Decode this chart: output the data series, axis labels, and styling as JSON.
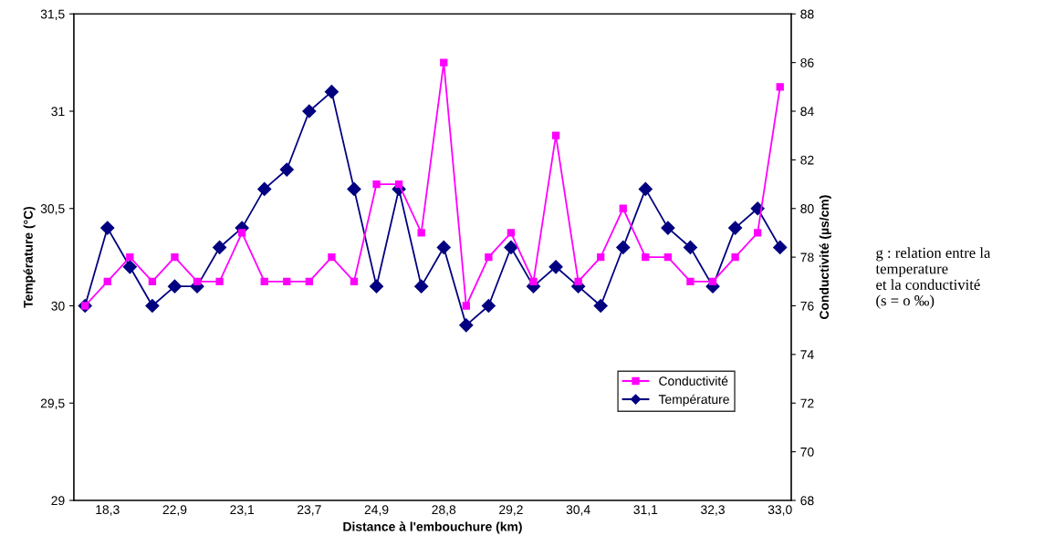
{
  "chart_data": {
    "type": "line",
    "xlabel": "Distance à l'embouchure (km)",
    "ylabel": "Température (°C)",
    "y2label": "Conductivité (µs/cm)",
    "categories": [
      null,
      "18,3",
      null,
      null,
      "22,9",
      null,
      null,
      "23,1",
      null,
      null,
      "23,7",
      null,
      null,
      "24,9",
      null,
      null,
      "28,8",
      null,
      null,
      "29,2",
      null,
      null,
      "30,4",
      null,
      null,
      "31,1",
      null,
      null,
      "32,3",
      null,
      null,
      "33,0"
    ],
    "series": [
      {
        "name": "Conductivité",
        "color": "#ff00ff",
        "axis": "y2",
        "marker": "square",
        "values": [
          76,
          77,
          78,
          77,
          78,
          77,
          77,
          79,
          77,
          77,
          77,
          78,
          77,
          81,
          81,
          79,
          86,
          76,
          78,
          79,
          77,
          83,
          77,
          78,
          80,
          78,
          78,
          77,
          77,
          78,
          79,
          85
        ]
      },
      {
        "name": "Température",
        "color": "#000080",
        "axis": "y",
        "marker": "diamond",
        "values": [
          30.0,
          30.4,
          30.2,
          30.0,
          30.1,
          30.1,
          30.3,
          30.4,
          30.6,
          30.7,
          31.0,
          31.1,
          30.6,
          30.1,
          30.6,
          30.1,
          30.3,
          29.9,
          30.0,
          30.3,
          30.1,
          30.2,
          30.1,
          30.0,
          30.3,
          30.6,
          30.4,
          30.3,
          30.1,
          30.4,
          30.5,
          30.3
        ]
      }
    ],
    "ylim": [
      29,
      31.5
    ],
    "yticks": [
      29,
      {
        "value": 29.5,
        "label": "29,5"
      },
      30,
      {
        "value": 30.5,
        "label": "30,5"
      },
      31,
      {
        "value": 31.5,
        "label": "31,5"
      }
    ],
    "y2lim": [
      68,
      88
    ],
    "y2ticks": [
      68,
      70,
      72,
      74,
      76,
      78,
      80,
      82,
      84,
      86,
      88
    ],
    "grid": false,
    "legend": "bottom right",
    "line_style": "solid",
    "annotations": [
      "g : relation entre la\ntemperature\net la conductivité\n(s = o ‰)"
    ]
  }
}
